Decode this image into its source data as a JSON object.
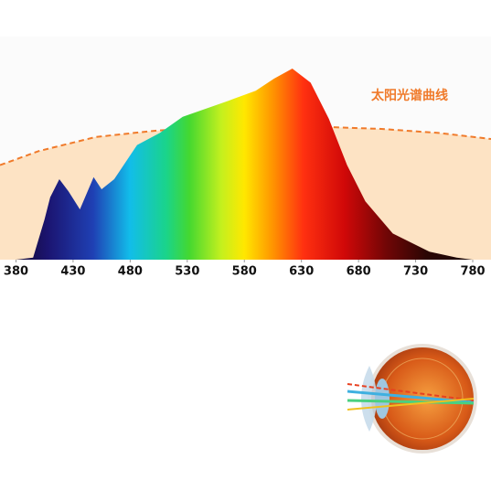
{
  "chart_data": {
    "type": "area",
    "annotation": "太阳光谱曲线",
    "xlim": [
      366,
      796
    ],
    "ylim": [
      0,
      100
    ],
    "xticks": [
      380,
      430,
      480,
      530,
      580,
      630,
      680,
      730,
      780
    ],
    "series": [
      {
        "color": "#f07a2a",
        "fill": "#fde3c4",
        "dashed": true,
        "x": [
          366,
          400,
          450,
          500,
          550,
          600,
          650,
          700,
          750,
          796
        ],
        "values": [
          47,
          54,
          61,
          64,
          66,
          66,
          66,
          65,
          63,
          60
        ]
      },
      {
        "color": "url(#spec)",
        "dashed": false,
        "x": [
          380,
          395,
          405,
          410,
          418,
          426,
          436,
          448,
          455,
          466,
          486,
          506,
          526,
          566,
          590,
          606,
          622,
          638,
          654,
          670,
          686,
          710,
          742,
          766,
          780
        ],
        "values": [
          0,
          1,
          20,
          31,
          40,
          34,
          25,
          41,
          35,
          40,
          57,
          63,
          71,
          79,
          84,
          90,
          95,
          88,
          70,
          47,
          29,
          13,
          4,
          1,
          0
        ]
      }
    ]
  }
}
